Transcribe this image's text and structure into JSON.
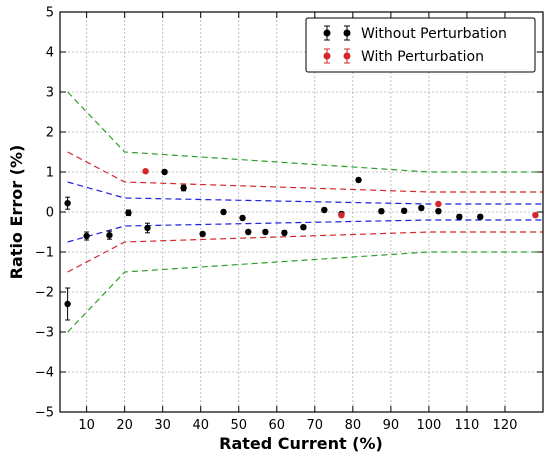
{
  "chart_data": {
    "type": "scatter",
    "title": "",
    "xlabel": "Rated Current (%)",
    "ylabel": "Ratio Error (%)",
    "xlim": [
      3,
      130
    ],
    "ylim": [
      -5,
      5
    ],
    "xticks": [
      10,
      20,
      30,
      40,
      50,
      60,
      70,
      80,
      90,
      100,
      110,
      120
    ],
    "yticks": [
      -5,
      -4,
      -3,
      -2,
      -1,
      0,
      1,
      2,
      3,
      4,
      5
    ],
    "xtick_labels": [
      "10",
      "20",
      "30",
      "40",
      "50",
      "60",
      "70",
      "80",
      "90",
      "100",
      "110",
      "120"
    ],
    "ytick_labels": [
      "−5",
      "−4",
      "−3",
      "−2",
      "−1",
      "0",
      "1",
      "2",
      "3",
      "4",
      "5"
    ],
    "grid": true,
    "legend_position": "top-right",
    "series": [
      {
        "name": "Without Perturbation",
        "color": "#000000",
        "marker": "circle",
        "points": [
          {
            "x": 5,
            "y": 0.22,
            "err": 0.15
          },
          {
            "x": 5,
            "y": -2.3,
            "err": 0.4
          },
          {
            "x": 10,
            "y": -0.6,
            "err": 0.1
          },
          {
            "x": 16,
            "y": -0.58,
            "err": 0.1
          },
          {
            "x": 21,
            "y": -0.02,
            "err": 0.07
          },
          {
            "x": 26,
            "y": -0.4,
            "err": 0.12
          },
          {
            "x": 30.5,
            "y": 1.0,
            "err": 0.05
          },
          {
            "x": 35.5,
            "y": 0.6,
            "err": 0.07
          },
          {
            "x": 40.5,
            "y": -0.55,
            "err": 0.05
          },
          {
            "x": 46,
            "y": 0.0,
            "err": 0.05
          },
          {
            "x": 51,
            "y": -0.15,
            "err": 0.05
          },
          {
            "x": 52.5,
            "y": -0.5,
            "err": 0.05
          },
          {
            "x": 57,
            "y": -0.5,
            "err": 0.05
          },
          {
            "x": 62,
            "y": -0.52,
            "err": 0.05
          },
          {
            "x": 67,
            "y": -0.38,
            "err": 0.05
          },
          {
            "x": 72.5,
            "y": 0.05,
            "err": 0.05
          },
          {
            "x": 77,
            "y": -0.05,
            "err": 0.05
          },
          {
            "x": 81.5,
            "y": 0.8,
            "err": 0.05
          },
          {
            "x": 87.5,
            "y": 0.02,
            "err": 0.05
          },
          {
            "x": 93.5,
            "y": 0.03,
            "err": 0.05
          },
          {
            "x": 98,
            "y": 0.1,
            "err": 0.05
          },
          {
            "x": 102.5,
            "y": 0.02,
            "err": 0.05
          },
          {
            "x": 108,
            "y": -0.12,
            "err": 0.05
          },
          {
            "x": 113.5,
            "y": -0.12,
            "err": 0.05
          }
        ]
      },
      {
        "name": "With Perturbation",
        "color": "#d62728",
        "marker": "circle",
        "points": [
          {
            "x": 25.5,
            "y": 1.02,
            "err": 0.04
          },
          {
            "x": 77,
            "y": -0.08,
            "err": 0.04
          },
          {
            "x": 102.5,
            "y": 0.2,
            "err": 0.04
          },
          {
            "x": 128,
            "y": -0.08,
            "err": 0.04
          }
        ]
      }
    ],
    "limit_lines": [
      {
        "color": "#2ca02c",
        "x": [
          5,
          20,
          100,
          130
        ],
        "upper": [
          3.0,
          1.5,
          1.0,
          1.0
        ],
        "lower": [
          -3.0,
          -1.5,
          -1.0,
          -1.0
        ]
      },
      {
        "color": "#d62728",
        "x": [
          5,
          20,
          100,
          130
        ],
        "upper": [
          1.5,
          0.75,
          0.5,
          0.5
        ],
        "lower": [
          -1.5,
          -0.75,
          -0.5,
          -0.5
        ]
      },
      {
        "color": "#1f1fdd",
        "x": [
          5,
          20,
          100,
          130
        ],
        "upper": [
          0.75,
          0.35,
          0.2,
          0.2
        ],
        "lower": [
          -0.75,
          -0.35,
          -0.2,
          -0.2
        ]
      }
    ]
  }
}
